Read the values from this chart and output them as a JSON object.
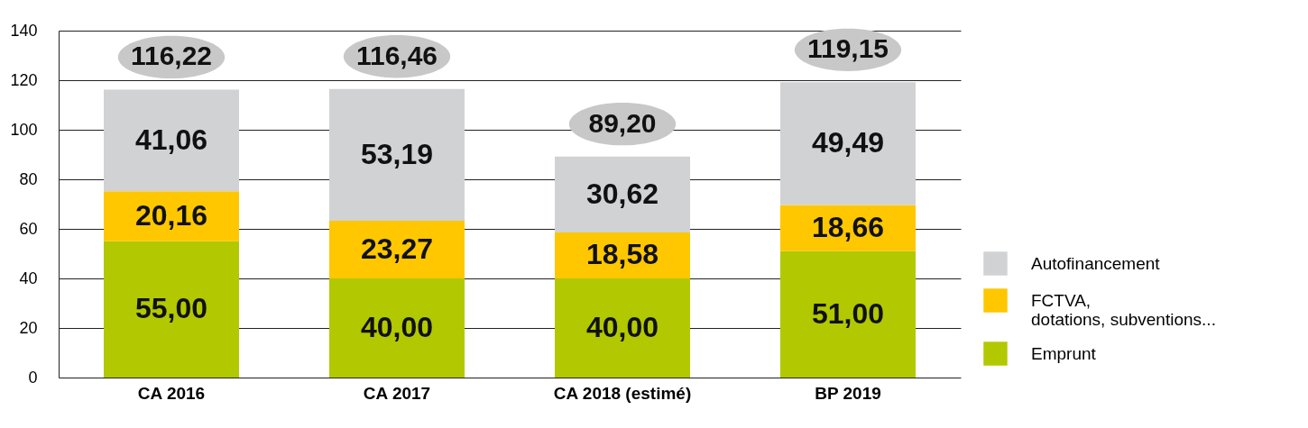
{
  "chart_data": {
    "type": "bar",
    "stacked": true,
    "categories": [
      "CA 2016",
      "CA 2017",
      "CA 2018 (estimé)",
      "BP 2019"
    ],
    "series": [
      {
        "name": "Emprunt",
        "color": "#b2c800",
        "values": [
          55.0,
          40.0,
          40.0,
          51.0
        ]
      },
      {
        "name": "FCTVA, dotations, subventions...",
        "color": "#ffc700",
        "values": [
          20.16,
          23.27,
          18.58,
          18.66
        ]
      },
      {
        "name": "Autofinancement",
        "color": "#d1d2d4",
        "values": [
          41.06,
          53.19,
          30.62,
          49.49
        ]
      }
    ],
    "totals": [
      "116,22",
      "116,46",
      "89,20",
      "119,15"
    ],
    "value_labels": [
      [
        "55,00",
        "40,00",
        "40,00",
        "51,00"
      ],
      [
        "20,16",
        "23,27",
        "18,58",
        "18,66"
      ],
      [
        "41,06",
        "53,19",
        "30,62",
        "49,49"
      ]
    ],
    "ylim": [
      0,
      140
    ],
    "yticks": [
      0,
      20,
      40,
      60,
      80,
      100,
      120,
      140
    ],
    "grid": "y",
    "legend": "right"
  }
}
